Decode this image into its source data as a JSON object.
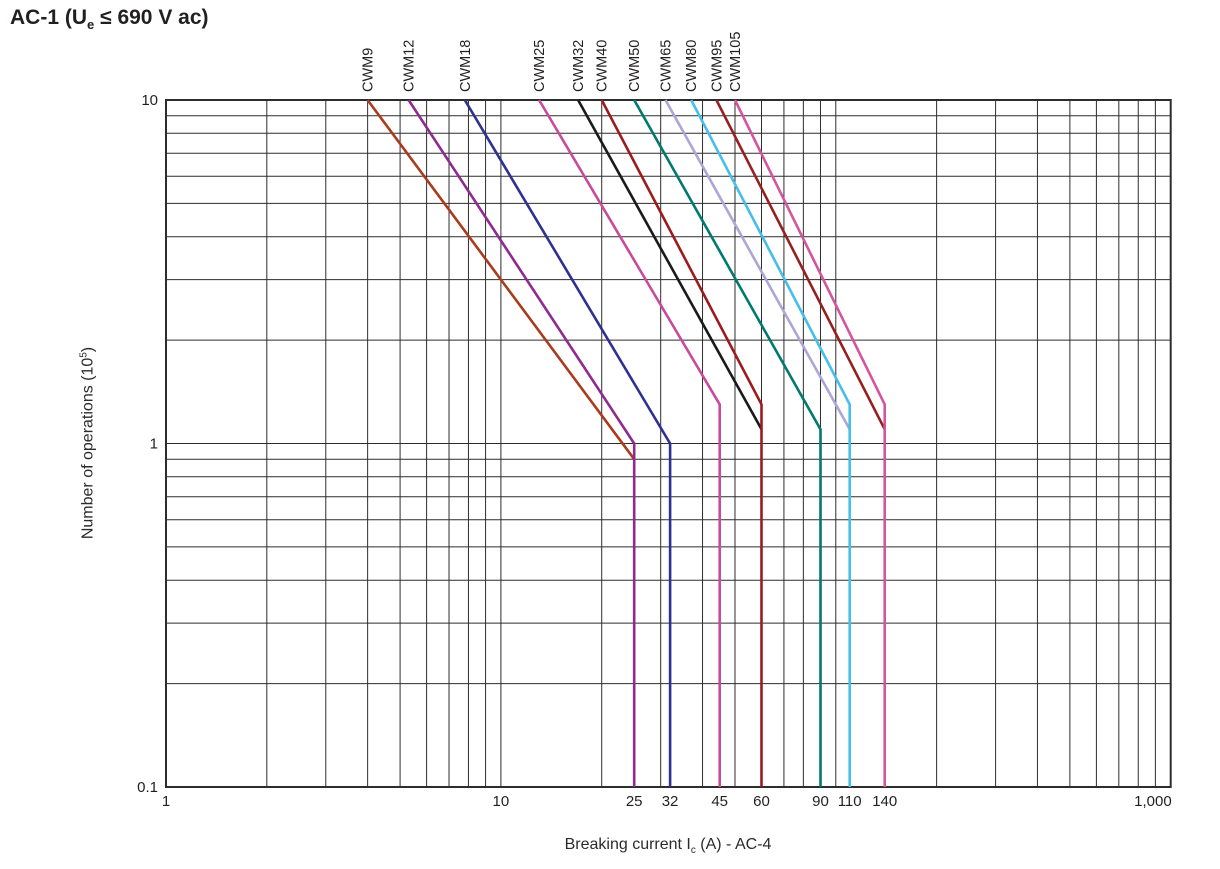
{
  "title": {
    "pre": "AC-1 (U",
    "sub": "e",
    "post": " ≤ 690 V ac)"
  },
  "x_axis": {
    "title_pre": "Breaking current I",
    "title_sub": "c",
    "title_post": " (A) - AC-4",
    "scale": "log",
    "range": [
      1,
      1000
    ]
  },
  "y_axis": {
    "title_pre": "Number of operations (10",
    "title_sup": "5",
    "title_post": ")",
    "scale": "log",
    "range": [
      0.1,
      10
    ]
  },
  "colors": {
    "background": "#ffffff",
    "grid": "#2d2d2d",
    "frame": "#2d2d2d",
    "text": "#231f20"
  },
  "chart_data": {
    "type": "line",
    "title": "AC-1 (Ue ≤ 690 V ac)",
    "xlabel": "Breaking current Ic (A) - AC-4",
    "ylabel": "Number of operations (10^5)",
    "x_scale": "log",
    "y_scale": "log",
    "xlim": [
      1,
      1000
    ],
    "ylim": [
      0.1,
      10
    ],
    "grid": "full log-log minor grid, both axes",
    "legend_position": "rotated labels above top edge at each curve start",
    "x_ticks": [
      {
        "value": 1,
        "label": "1"
      },
      {
        "value": 10,
        "label": "10"
      },
      {
        "value": 25,
        "label": "25"
      },
      {
        "value": 32,
        "label": "32"
      },
      {
        "value": 45,
        "label": "45"
      },
      {
        "value": 60,
        "label": "60"
      },
      {
        "value": 90,
        "label": "90"
      },
      {
        "value": 110,
        "label": "110"
      },
      {
        "value": 140,
        "label": "140"
      },
      {
        "value": 1000,
        "label": "1,000"
      }
    ],
    "y_ticks": [
      {
        "value": 10,
        "label": "10"
      },
      {
        "value": 1,
        "label": "1"
      },
      {
        "value": 0.1,
        "label": "0.1"
      }
    ],
    "series": [
      {
        "name": "CWM9",
        "color": "#A93B1E",
        "points": [
          [
            4,
            10
          ],
          [
            25,
            0.9
          ]
        ]
      },
      {
        "name": "CWM12",
        "color": "#8F2A8F",
        "points": [
          [
            5.3,
            10
          ],
          [
            25,
            1.0
          ],
          [
            25,
            0.1
          ]
        ]
      },
      {
        "name": "CWM18",
        "color": "#2E3192",
        "points": [
          [
            7.8,
            10
          ],
          [
            32,
            1.0
          ],
          [
            32,
            0.1
          ]
        ]
      },
      {
        "name": "CWM25",
        "color": "#C94A9C",
        "points": [
          [
            13,
            10
          ],
          [
            45,
            1.3
          ],
          [
            45,
            0.1
          ]
        ]
      },
      {
        "name": "CWM32",
        "color": "#1A1A1A",
        "points": [
          [
            17,
            10
          ],
          [
            60,
            1.1
          ]
        ]
      },
      {
        "name": "CWM40",
        "color": "#9B1B1E",
        "points": [
          [
            20,
            10
          ],
          [
            60,
            1.3
          ],
          [
            60,
            0.1
          ]
        ]
      },
      {
        "name": "CWM50",
        "color": "#007A70",
        "points": [
          [
            25,
            10
          ],
          [
            90,
            1.1
          ],
          [
            90,
            0.1
          ]
        ]
      },
      {
        "name": "CWM65",
        "color": "#ABA6D6",
        "points": [
          [
            31,
            10
          ],
          [
            110,
            1.1
          ]
        ]
      },
      {
        "name": "CWM80",
        "color": "#45BEEA",
        "points": [
          [
            37,
            10
          ],
          [
            110,
            1.3
          ],
          [
            110,
            0.1
          ]
        ]
      },
      {
        "name": "CWM95",
        "color": "#96201F",
        "points": [
          [
            44,
            10
          ],
          [
            140,
            1.1
          ]
        ]
      },
      {
        "name": "CWM105",
        "color": "#D4559F",
        "points": [
          [
            50,
            10
          ],
          [
            140,
            1.3
          ],
          [
            140,
            0.1
          ]
        ]
      }
    ]
  }
}
